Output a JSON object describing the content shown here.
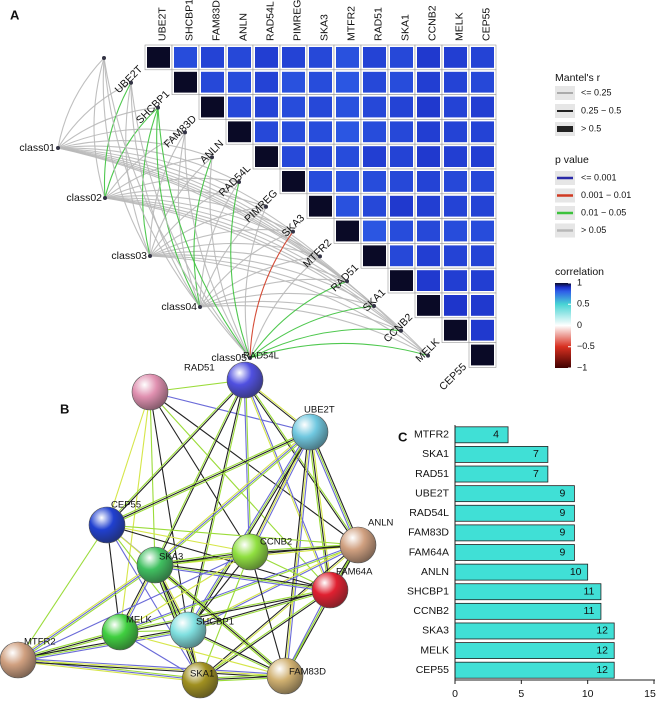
{
  "panel_labels": [
    "A",
    "B",
    "C"
  ],
  "chart_data": [
    {
      "type": "heatmap",
      "genes": [
        "UBE2T",
        "SHCBP1",
        "FAM83D",
        "ANLN",
        "RAD54L",
        "PIMREG",
        "SKA3",
        "MTFR2",
        "RAD51",
        "SKA1",
        "CCNB2",
        "MELK",
        "CEP55"
      ],
      "values": [
        [
          1,
          0.84,
          0.86,
          0.85,
          0.87,
          0.86,
          0.85,
          0.83,
          0.86,
          0.85,
          0.88,
          0.87,
          0.86
        ],
        [
          null,
          1,
          0.85,
          0.84,
          0.86,
          0.83,
          0.84,
          0.82,
          0.85,
          0.84,
          0.87,
          0.86,
          0.85
        ],
        [
          null,
          null,
          1,
          0.85,
          0.86,
          0.84,
          0.85,
          0.83,
          0.85,
          0.86,
          0.88,
          0.86,
          0.87
        ],
        [
          null,
          null,
          null,
          1,
          0.85,
          0.84,
          0.84,
          0.82,
          0.84,
          0.85,
          0.87,
          0.86,
          0.86
        ],
        [
          null,
          null,
          null,
          null,
          1,
          0.85,
          0.86,
          0.84,
          0.87,
          0.86,
          0.88,
          0.87,
          0.87
        ],
        [
          null,
          null,
          null,
          null,
          null,
          1,
          0.84,
          0.83,
          0.84,
          0.85,
          0.86,
          0.85,
          0.85
        ],
        [
          null,
          null,
          null,
          null,
          null,
          null,
          1,
          0.83,
          0.85,
          0.88,
          0.87,
          0.86,
          0.86
        ],
        [
          null,
          null,
          null,
          null,
          null,
          null,
          null,
          1,
          0.82,
          0.84,
          0.85,
          0.84,
          0.84
        ],
        [
          null,
          null,
          null,
          null,
          null,
          null,
          null,
          null,
          1,
          0.85,
          0.87,
          0.86,
          0.86
        ],
        [
          null,
          null,
          null,
          null,
          null,
          null,
          null,
          null,
          null,
          1,
          0.88,
          0.87,
          0.87
        ],
        [
          null,
          null,
          null,
          null,
          null,
          null,
          null,
          null,
          null,
          null,
          1,
          0.89,
          0.88
        ],
        [
          null,
          null,
          null,
          null,
          null,
          null,
          null,
          null,
          null,
          null,
          null,
          1,
          0.88
        ],
        [
          null,
          null,
          null,
          null,
          null,
          null,
          null,
          null,
          null,
          null,
          null,
          null,
          1
        ]
      ],
      "color_label": "correlation",
      "colorbar_lim": [
        -1,
        1
      ],
      "colorbar_ticks": [
        1,
        0.5,
        0,
        {
          "value": -0.5,
          "label": "−0.5"
        },
        {
          "value": -1,
          "label": "−1"
        }
      ],
      "mantel": {
        "classes": [
          "class01",
          "class02",
          "class03",
          "class04",
          "class05"
        ],
        "p_classes": [
          [
            3,
            3,
            3,
            3,
            3,
            3,
            3,
            3,
            3,
            3,
            3,
            3,
            3
          ],
          [
            3,
            2,
            2,
            3,
            3,
            3,
            3,
            3,
            3,
            3,
            3,
            3,
            3
          ],
          [
            3,
            3,
            2,
            3,
            3,
            3,
            3,
            3,
            3,
            3,
            3,
            3,
            3
          ],
          [
            3,
            3,
            2,
            3,
            2,
            3,
            3,
            3,
            3,
            3,
            3,
            3,
            3
          ],
          [
            3,
            3,
            2,
            3,
            3,
            2,
            3,
            1,
            3,
            2,
            2,
            2,
            2
          ]
        ]
      },
      "mantel_r_title": "Mantel's r",
      "mantel_r_labels": [
        "<= 0.25",
        "0.25 − 0.5",
        "> 0.5"
      ],
      "p_title": "p value",
      "p_labels": [
        "<= 0.001",
        "0.001 − 0.01",
        "0.01 − 0.05",
        "> 0.05"
      ],
      "p_colors": [
        "#2a2aa8",
        "#d03a22",
        "#3cc23c",
        "#b8b8b8"
      ]
    },
    {
      "type": "bar",
      "categories": [
        "MTFR2",
        "SKA1",
        "RAD51",
        "UBE2T",
        "RAD54L",
        "FAM83D",
        "FAM64A",
        "ANLN",
        "SHCBP1",
        "CCNB2",
        "SKA3",
        "MELK",
        "CEP55"
      ],
      "values": [
        4,
        7,
        7,
        9,
        9,
        9,
        9,
        10,
        11,
        11,
        12,
        12,
        12
      ],
      "color": "#40e0d6",
      "xlim": [
        0,
        15
      ],
      "xticks": [
        0,
        5,
        10,
        15
      ]
    }
  ],
  "network": {
    "nodes": [
      "RAD51",
      "RAD54L",
      "UBE2T",
      "CEP55",
      "ANLN",
      "SKA3",
      "CCNB2",
      "FAM64A",
      "MTFR2",
      "MELK",
      "SHCBP1",
      "SKA1",
      "FAM83D"
    ]
  }
}
